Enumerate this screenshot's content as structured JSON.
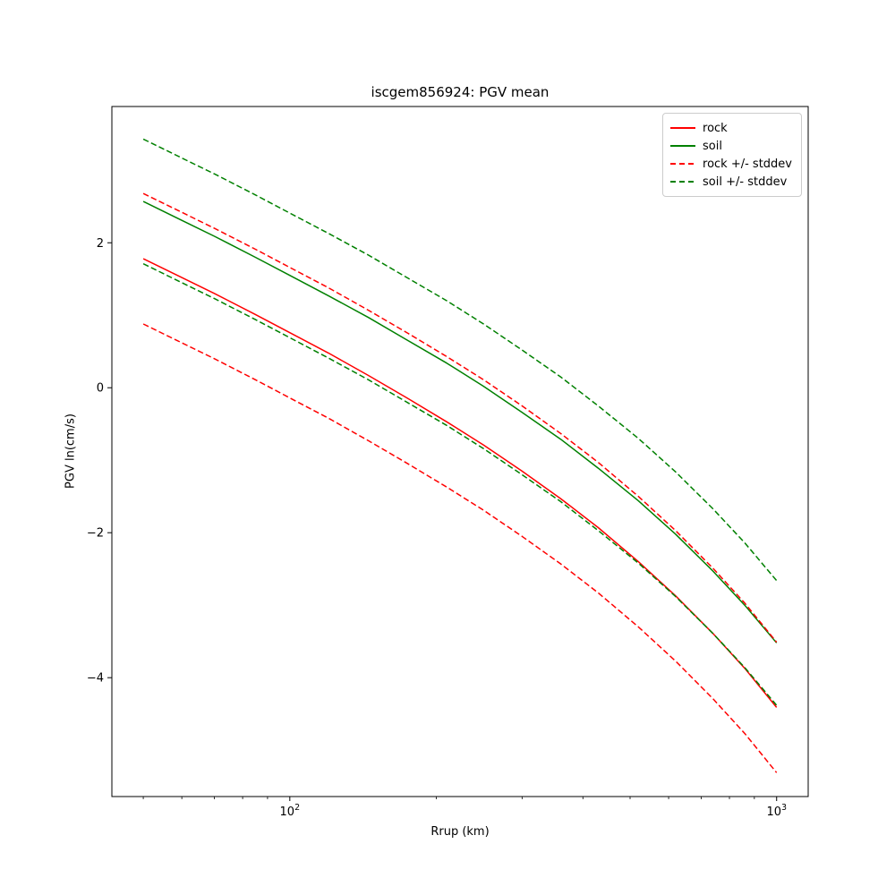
{
  "figure": {
    "title": "iscgem856924: PGV mean",
    "xlabel": "Rrup (km)",
    "ylabel": "PGV ln(cm/s)"
  },
  "legend": {
    "entries": [
      {
        "label": "rock",
        "color": "#ff0000",
        "dash": false
      },
      {
        "label": "soil",
        "color": "#008000",
        "dash": false
      },
      {
        "label": "rock +/- stddev",
        "color": "#ff0000",
        "dash": true
      },
      {
        "label": "soil +/- stddev",
        "color": "#008000",
        "dash": true
      }
    ]
  },
  "chart_data": {
    "type": "line",
    "title": "iscgem856924: PGV mean",
    "xlabel": "Rrup (km)",
    "ylabel": "PGV ln(cm/s)",
    "x_scale": "log",
    "grid": false,
    "legend_position": "upper right",
    "xlim": [
      43.1,
      1161
    ],
    "ylim": [
      -5.64,
      3.88
    ],
    "x_ticks": [
      {
        "value": 100,
        "base": "10",
        "exp": "2"
      },
      {
        "value": 1000,
        "base": "10",
        "exp": "3"
      }
    ],
    "x_minor_ticks": [
      50,
      60,
      70,
      80,
      90,
      200,
      300,
      400,
      500,
      600,
      700,
      800,
      900
    ],
    "y_ticks": [
      {
        "value": 2,
        "label": "2"
      },
      {
        "value": 0,
        "label": "0"
      },
      {
        "value": -2,
        "label": "−2"
      },
      {
        "value": -4,
        "label": "−4"
      }
    ],
    "x": [
      50,
      60,
      70,
      85,
      100,
      120,
      145,
      175,
      210,
      250,
      300,
      360,
      430,
      520,
      620,
      740,
      860,
      1000
    ],
    "series": [
      {
        "name": "rock",
        "legend": "rock",
        "color": "#ff0000",
        "style": "solid",
        "values": [
          1.78,
          1.52,
          1.3,
          1.01,
          0.76,
          0.48,
          0.17,
          -0.15,
          -0.47,
          -0.79,
          -1.15,
          -1.53,
          -1.93,
          -2.4,
          -2.87,
          -3.39,
          -3.87,
          -4.41
        ]
      },
      {
        "name": "soil",
        "legend": "soil",
        "color": "#008000",
        "style": "solid",
        "values": [
          2.57,
          2.31,
          2.09,
          1.8,
          1.55,
          1.27,
          0.97,
          0.65,
          0.34,
          0.02,
          -0.34,
          -0.71,
          -1.11,
          -1.56,
          -2.02,
          -2.53,
          -3.0,
          -3.52
        ]
      },
      {
        "name": "rock plus stddev",
        "legend": "rock +/- stddev",
        "color": "#ff0000",
        "style": "dashed",
        "values": [
          2.68,
          2.42,
          2.2,
          1.91,
          1.66,
          1.38,
          1.07,
          0.75,
          0.43,
          0.11,
          -0.25,
          -0.63,
          -1.03,
          -1.5,
          -1.97,
          -2.49,
          -2.97,
          -3.51
        ]
      },
      {
        "name": "rock minus stddev",
        "legend": "rock +/- stddev",
        "color": "#ff0000",
        "style": "dashed",
        "values": [
          0.88,
          0.62,
          0.4,
          0.11,
          -0.14,
          -0.42,
          -0.73,
          -1.05,
          -1.37,
          -1.69,
          -2.05,
          -2.43,
          -2.83,
          -3.3,
          -3.77,
          -4.29,
          -4.77,
          -5.31
        ]
      },
      {
        "name": "soil plus stddev",
        "legend": "soil +/- stddev",
        "color": "#008000",
        "style": "dashed",
        "values": [
          3.43,
          3.17,
          2.95,
          2.66,
          2.41,
          2.13,
          1.83,
          1.51,
          1.2,
          0.88,
          0.52,
          0.15,
          -0.25,
          -0.7,
          -1.16,
          -1.67,
          -2.14,
          -2.66
        ]
      },
      {
        "name": "soil minus stddev",
        "legend": "soil +/- stddev",
        "color": "#008000",
        "style": "dashed",
        "values": [
          1.71,
          1.45,
          1.23,
          0.94,
          0.69,
          0.41,
          0.11,
          -0.21,
          -0.52,
          -0.84,
          -1.2,
          -1.57,
          -1.97,
          -2.42,
          -2.88,
          -3.39,
          -3.86,
          -4.38
        ]
      }
    ]
  }
}
